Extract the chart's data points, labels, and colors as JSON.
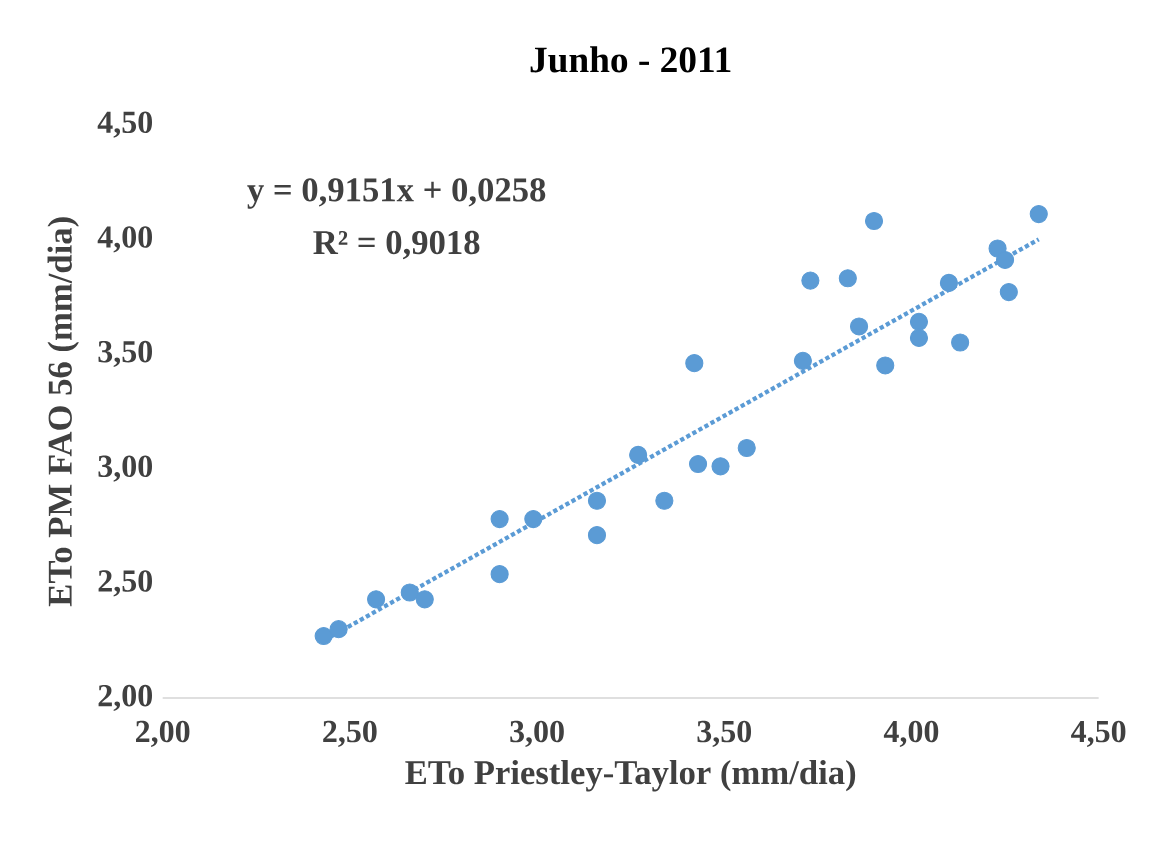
{
  "chart_data": {
    "type": "scatter",
    "title": "Junho - 2011",
    "xlabel": "ETo Priestley-Taylor (mm/dia)",
    "ylabel": "ETo PM FAO 56 (mm/dia)",
    "annotations": [
      "y = 0,9151x + 0,0258",
      "R² = 0,9018"
    ],
    "xlim": [
      2,
      4.5
    ],
    "ylim": [
      2,
      4.5
    ],
    "xticks": [
      {
        "value": 2,
        "label": "2,00"
      },
      {
        "value": 2.5,
        "label": "2,50"
      },
      {
        "value": 3,
        "label": "3,00"
      },
      {
        "value": 3.5,
        "label": "3,50"
      },
      {
        "value": 4,
        "label": "4,00"
      },
      {
        "value": 4.5,
        "label": "4,50"
      }
    ],
    "yticks": [
      {
        "value": 2,
        "label": "2,00"
      },
      {
        "value": 2.5,
        "label": "2,50"
      },
      {
        "value": 3,
        "label": "3,00"
      },
      {
        "value": 3.5,
        "label": "3,50"
      },
      {
        "value": 4,
        "label": "4,00"
      },
      {
        "value": 4.5,
        "label": "4,50"
      }
    ],
    "grid": false,
    "marker": "circle",
    "series": [
      {
        "color": "#5b9bd5",
        "x": [
          2.43,
          2.47,
          2.57,
          2.66,
          2.7,
          2.9,
          2.9,
          2.99,
          3.16,
          3.16,
          3.27,
          3.34,
          3.42,
          3.43,
          3.49,
          3.56,
          3.71,
          3.73,
          3.83,
          3.86,
          3.9,
          3.93,
          4.02,
          4.02,
          4.1,
          4.13,
          4.23,
          4.25,
          4.26,
          4.34
        ],
        "values": [
          2.27,
          2.3,
          2.43,
          2.46,
          2.43,
          2.78,
          2.54,
          2.78,
          2.86,
          2.71,
          3.06,
          2.86,
          3.46,
          3.02,
          3.01,
          3.09,
          3.47,
          3.82,
          3.83,
          3.62,
          4.08,
          3.45,
          3.64,
          3.57,
          3.81,
          3.55,
          3.96,
          3.91,
          3.77,
          4.11
        ]
      },
      {
        "type": "line",
        "color": "#5b9bd5",
        "line_style": "dotted",
        "marker": "none",
        "x": [
          2.43,
          4.34
        ],
        "values": [
          2.25,
          4.0
        ]
      }
    ]
  }
}
